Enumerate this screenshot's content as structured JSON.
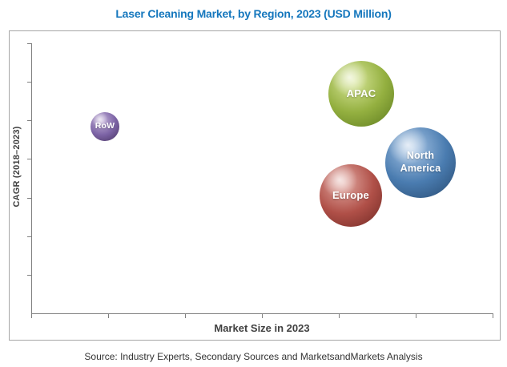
{
  "page": {
    "title": "Laser Cleaning Market, by Region, 2023 (USD Million)",
    "source_note": "Source: Industry Experts, Secondary Sources and MarketsandMarkets Analysis"
  },
  "colors": {
    "title_blue": "#1577bd",
    "axis_gray": "#808080",
    "frame_border": "#a6a6a6",
    "axis_label_text": "#404040",
    "source_text": "#333333",
    "bubble_label_text": "#ffffff"
  },
  "chart_data": {
    "type": "scatter",
    "subtype": "bubble-3d",
    "title": "Laser Cleaning Market, by Region, 2023 (USD Million)",
    "xlabel": "Market Size in 2023",
    "ylabel": "CAGR (2018–2023)",
    "grid": false,
    "legend": false,
    "axis_numeric_labels_visible": false,
    "x_tick_count": 7,
    "y_tick_count": 7,
    "note": "Axes are unlabeled numerically; x_frac and y_frac give each bubble center as a fraction along the x-axis (market size) and up the y-axis (CAGR). radius_px encodes relative market size.",
    "bubbles": [
      {
        "region": "RoW",
        "label_lines": [
          "RoW"
        ],
        "x_frac": 0.16,
        "y_frac": 0.691,
        "radius_px": 18,
        "label_font_px": 10.5,
        "color": {
          "highlight": "#c3b1d9",
          "base": "#7d64a6",
          "dark": "#46325f"
        }
      },
      {
        "region": "APAC",
        "label_lines": [
          "APAC"
        ],
        "x_frac": 0.715,
        "y_frac": 0.813,
        "radius_px": 41,
        "label_font_px": 13,
        "color": {
          "highlight": "#d9e79b",
          "base": "#94b040",
          "dark": "#5c7a1e"
        }
      },
      {
        "region": "North America",
        "label_lines": [
          "North",
          "America"
        ],
        "x_frac": 0.844,
        "y_frac": 0.558,
        "radius_px": 44,
        "label_font_px": 12.5,
        "color": {
          "highlight": "#a9c6e6",
          "base": "#4a7cb0",
          "dark": "#26486e"
        }
      },
      {
        "region": "Europe",
        "label_lines": [
          "Europe"
        ],
        "x_frac": 0.693,
        "y_frac": 0.436,
        "radius_px": 39,
        "label_font_px": 13,
        "color": {
          "highlight": "#e3aba4",
          "base": "#b05048",
          "dark": "#6f2823"
        }
      }
    ]
  }
}
